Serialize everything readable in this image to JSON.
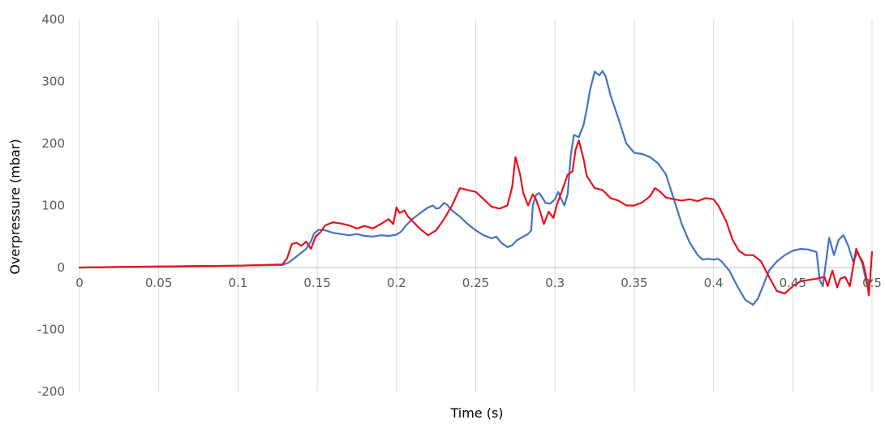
{
  "chart_data": {
    "type": "line",
    "title": "",
    "xlabel": "Time (s)",
    "ylabel": "Overpressure (mbar)",
    "xlim": [
      0,
      0.5
    ],
    "ylim": [
      -200,
      400
    ],
    "x_ticks": [
      "0",
      "0.05",
      "0.1",
      "0.15",
      "0.2",
      "0.25",
      "0.3",
      "0.35",
      "0.4",
      "0.45",
      "0.5"
    ],
    "y_ticks": [
      "400",
      "300",
      "200",
      "100",
      "0",
      "-100",
      "-200"
    ],
    "x_tick_values": [
      0,
      0.05,
      0.1,
      0.15,
      0.2,
      0.25,
      0.3,
      0.35,
      0.4,
      0.45,
      0.5
    ],
    "y_tick_values": [
      400,
      300,
      200,
      100,
      0,
      -100,
      -200
    ],
    "grid": "vertical",
    "legend": "none",
    "series": [
      {
        "color": "#4472C4",
        "points": [
          [
            0,
            0
          ],
          [
            0.1,
            3
          ],
          [
            0.128,
            4
          ],
          [
            0.132,
            8
          ],
          [
            0.138,
            20
          ],
          [
            0.143,
            30
          ],
          [
            0.146,
            42
          ],
          [
            0.148,
            55
          ],
          [
            0.151,
            61
          ],
          [
            0.155,
            60
          ],
          [
            0.16,
            56
          ],
          [
            0.165,
            54
          ],
          [
            0.17,
            52
          ],
          [
            0.175,
            54
          ],
          [
            0.18,
            51
          ],
          [
            0.185,
            50
          ],
          [
            0.19,
            52
          ],
          [
            0.195,
            51
          ],
          [
            0.2,
            53
          ],
          [
            0.203,
            58
          ],
          [
            0.206,
            68
          ],
          [
            0.21,
            78
          ],
          [
            0.215,
            88
          ],
          [
            0.22,
            97
          ],
          [
            0.223,
            100
          ],
          [
            0.225,
            95
          ],
          [
            0.227,
            96
          ],
          [
            0.23,
            104
          ],
          [
            0.232,
            101
          ],
          [
            0.235,
            92
          ],
          [
            0.24,
            82
          ],
          [
            0.245,
            70
          ],
          [
            0.25,
            60
          ],
          [
            0.255,
            52
          ],
          [
            0.26,
            47
          ],
          [
            0.263,
            50
          ],
          [
            0.266,
            40
          ],
          [
            0.27,
            33
          ],
          [
            0.273,
            36
          ],
          [
            0.276,
            44
          ],
          [
            0.28,
            50
          ],
          [
            0.283,
            54
          ],
          [
            0.285,
            60
          ],
          [
            0.286,
            100
          ],
          [
            0.288,
            117
          ],
          [
            0.29,
            120
          ],
          [
            0.292,
            113
          ],
          [
            0.294,
            104
          ],
          [
            0.297,
            103
          ],
          [
            0.3,
            110
          ],
          [
            0.302,
            122
          ],
          [
            0.304,
            110
          ],
          [
            0.306,
            100
          ],
          [
            0.308,
            118
          ],
          [
            0.31,
            182
          ],
          [
            0.312,
            214
          ],
          [
            0.315,
            210
          ],
          [
            0.318,
            230
          ],
          [
            0.32,
            255
          ],
          [
            0.322,
            285
          ],
          [
            0.325,
            316
          ],
          [
            0.328,
            310
          ],
          [
            0.33,
            317
          ],
          [
            0.332,
            308
          ],
          [
            0.335,
            278
          ],
          [
            0.34,
            240
          ],
          [
            0.345,
            200
          ],
          [
            0.35,
            185
          ],
          [
            0.355,
            183
          ],
          [
            0.36,
            178
          ],
          [
            0.365,
            168
          ],
          [
            0.37,
            150
          ],
          [
            0.375,
            110
          ],
          [
            0.38,
            70
          ],
          [
            0.385,
            40
          ],
          [
            0.39,
            20
          ],
          [
            0.393,
            13
          ],
          [
            0.397,
            14
          ],
          [
            0.4,
            13
          ],
          [
            0.403,
            14
          ],
          [
            0.405,
            10
          ],
          [
            0.41,
            -5
          ],
          [
            0.415,
            -30
          ],
          [
            0.42,
            -52
          ],
          [
            0.425,
            -60
          ],
          [
            0.428,
            -50
          ],
          [
            0.432,
            -25
          ],
          [
            0.435,
            -5
          ],
          [
            0.44,
            10
          ],
          [
            0.445,
            20
          ],
          [
            0.45,
            27
          ],
          [
            0.455,
            30
          ],
          [
            0.46,
            29
          ],
          [
            0.465,
            25
          ],
          [
            0.467,
            -20
          ],
          [
            0.469,
            -30
          ],
          [
            0.471,
            10
          ],
          [
            0.473,
            48
          ],
          [
            0.476,
            20
          ],
          [
            0.479,
            45
          ],
          [
            0.482,
            52
          ],
          [
            0.485,
            35
          ],
          [
            0.488,
            10
          ],
          [
            0.491,
            25
          ],
          [
            0.494,
            5
          ],
          [
            0.497,
            -30
          ],
          [
            0.5,
            -20
          ]
        ]
      },
      {
        "color": "#E8121C",
        "points": [
          [
            0,
            0
          ],
          [
            0.1,
            3
          ],
          [
            0.128,
            5
          ],
          [
            0.131,
            15
          ],
          [
            0.134,
            38
          ],
          [
            0.137,
            40
          ],
          [
            0.14,
            35
          ],
          [
            0.143,
            42
          ],
          [
            0.146,
            30
          ],
          [
            0.149,
            50
          ],
          [
            0.152,
            57
          ],
          [
            0.155,
            68
          ],
          [
            0.16,
            73
          ],
          [
            0.165,
            71
          ],
          [
            0.17,
            68
          ],
          [
            0.175,
            63
          ],
          [
            0.18,
            67
          ],
          [
            0.185,
            63
          ],
          [
            0.19,
            70
          ],
          [
            0.195,
            78
          ],
          [
            0.198,
            70
          ],
          [
            0.2,
            97
          ],
          [
            0.202,
            88
          ],
          [
            0.205,
            92
          ],
          [
            0.207,
            83
          ],
          [
            0.21,
            75
          ],
          [
            0.215,
            62
          ],
          [
            0.22,
            52
          ],
          [
            0.225,
            60
          ],
          [
            0.23,
            78
          ],
          [
            0.235,
            100
          ],
          [
            0.24,
            128
          ],
          [
            0.245,
            125
          ],
          [
            0.25,
            122
          ],
          [
            0.255,
            110
          ],
          [
            0.26,
            98
          ],
          [
            0.265,
            95
          ],
          [
            0.27,
            100
          ],
          [
            0.273,
            130
          ],
          [
            0.275,
            178
          ],
          [
            0.278,
            150
          ],
          [
            0.28,
            120
          ],
          [
            0.283,
            100
          ],
          [
            0.286,
            118
          ],
          [
            0.288,
            110
          ],
          [
            0.29,
            95
          ],
          [
            0.293,
            70
          ],
          [
            0.296,
            90
          ],
          [
            0.299,
            80
          ],
          [
            0.301,
            100
          ],
          [
            0.305,
            128
          ],
          [
            0.308,
            150
          ],
          [
            0.311,
            155
          ],
          [
            0.313,
            190
          ],
          [
            0.315,
            205
          ],
          [
            0.318,
            175
          ],
          [
            0.32,
            148
          ],
          [
            0.325,
            128
          ],
          [
            0.33,
            125
          ],
          [
            0.335,
            112
          ],
          [
            0.34,
            108
          ],
          [
            0.345,
            100
          ],
          [
            0.35,
            100
          ],
          [
            0.355,
            105
          ],
          [
            0.36,
            115
          ],
          [
            0.363,
            128
          ],
          [
            0.366,
            123
          ],
          [
            0.37,
            113
          ],
          [
            0.375,
            110
          ],
          [
            0.38,
            108
          ],
          [
            0.385,
            110
          ],
          [
            0.39,
            107
          ],
          [
            0.395,
            112
          ],
          [
            0.4,
            110
          ],
          [
            0.403,
            100
          ],
          [
            0.408,
            75
          ],
          [
            0.412,
            45
          ],
          [
            0.416,
            27
          ],
          [
            0.42,
            20
          ],
          [
            0.425,
            20
          ],
          [
            0.43,
            10
          ],
          [
            0.435,
            -15
          ],
          [
            0.44,
            -38
          ],
          [
            0.445,
            -42
          ],
          [
            0.45,
            -30
          ],
          [
            0.455,
            -22
          ],
          [
            0.46,
            -20
          ],
          [
            0.465,
            -18
          ],
          [
            0.47,
            -15
          ],
          [
            0.472,
            -30
          ],
          [
            0.475,
            -5
          ],
          [
            0.478,
            -32
          ],
          [
            0.48,
            -18
          ],
          [
            0.483,
            -15
          ],
          [
            0.486,
            -30
          ],
          [
            0.488,
            0
          ],
          [
            0.49,
            30
          ],
          [
            0.492,
            18
          ],
          [
            0.494,
            10
          ],
          [
            0.496,
            -10
          ],
          [
            0.498,
            -45
          ],
          [
            0.5,
            25
          ]
        ]
      }
    ]
  }
}
